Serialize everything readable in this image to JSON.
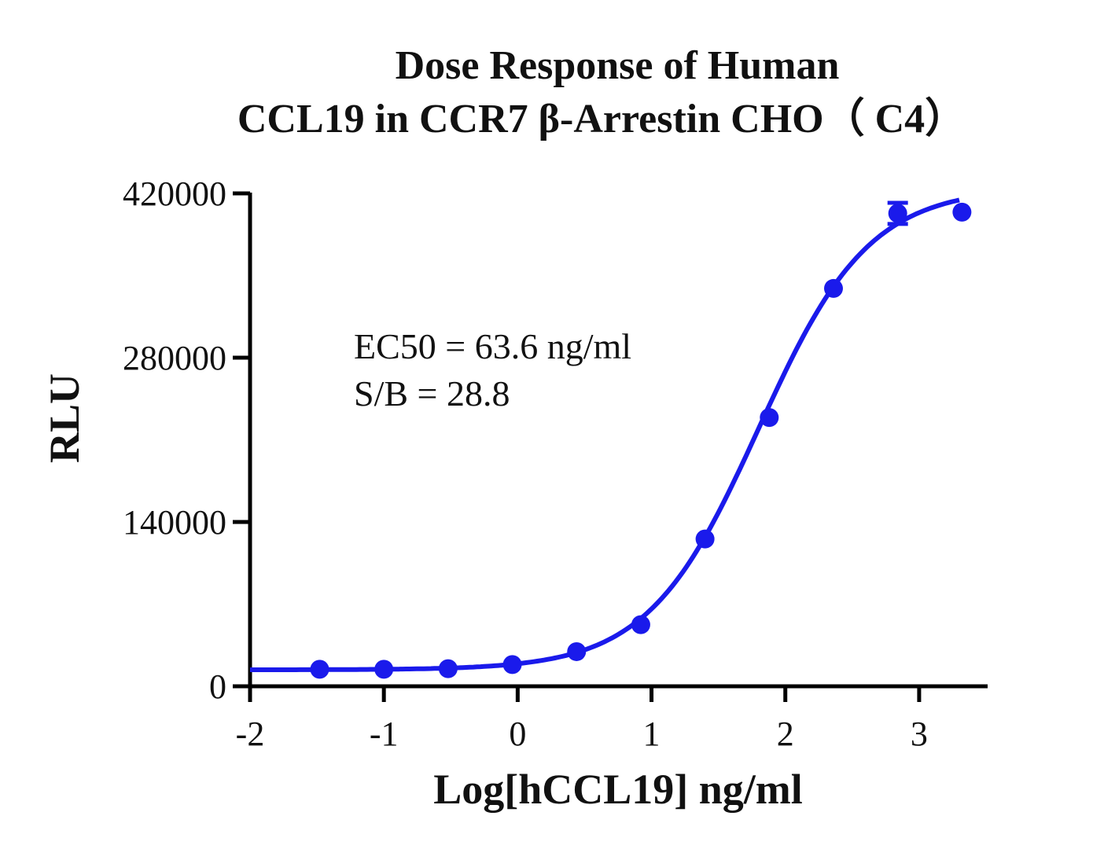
{
  "chart_data": {
    "type": "scatter",
    "title_lines": [
      "Dose Response of Human",
      "CCL19 in CCR7 β-Arrestin CHO（ C4）"
    ],
    "xlabel": "Log[hCCL19] ng/ml",
    "ylabel": "RLU",
    "xlim": [
      -2,
      3.5
    ],
    "ylim": [
      0,
      420000
    ],
    "xticks": [
      -2,
      -1,
      0,
      1,
      2,
      3
    ],
    "yticks": [
      0,
      140000,
      280000,
      420000
    ],
    "xtick_labels": [
      "-2",
      "-1",
      "0",
      "1",
      "2",
      "3"
    ],
    "ytick_labels": [
      "0",
      "140000",
      "280000",
      "420000"
    ],
    "annotations": [
      "EC50 = 63.6 ng/ml",
      "S/B = 28.8"
    ],
    "color": "#1a1aeb",
    "series": [
      {
        "x": [
          -1.48,
          -1.0,
          -0.52,
          -0.04,
          0.44,
          0.92,
          1.4,
          1.88,
          2.36,
          2.84,
          3.32
        ],
        "y": [
          14500,
          14500,
          15000,
          18500,
          29500,
          52500,
          125500,
          229000,
          339000,
          403000,
          404000
        ],
        "error": [
          0,
          0,
          0,
          0,
          0,
          0,
          0,
          0,
          0,
          9000,
          0
        ]
      }
    ],
    "fit": {
      "model": "4PL",
      "bottom": 14000,
      "top": 425000,
      "log_ec50": 1.8,
      "hill": 1.05
    }
  }
}
